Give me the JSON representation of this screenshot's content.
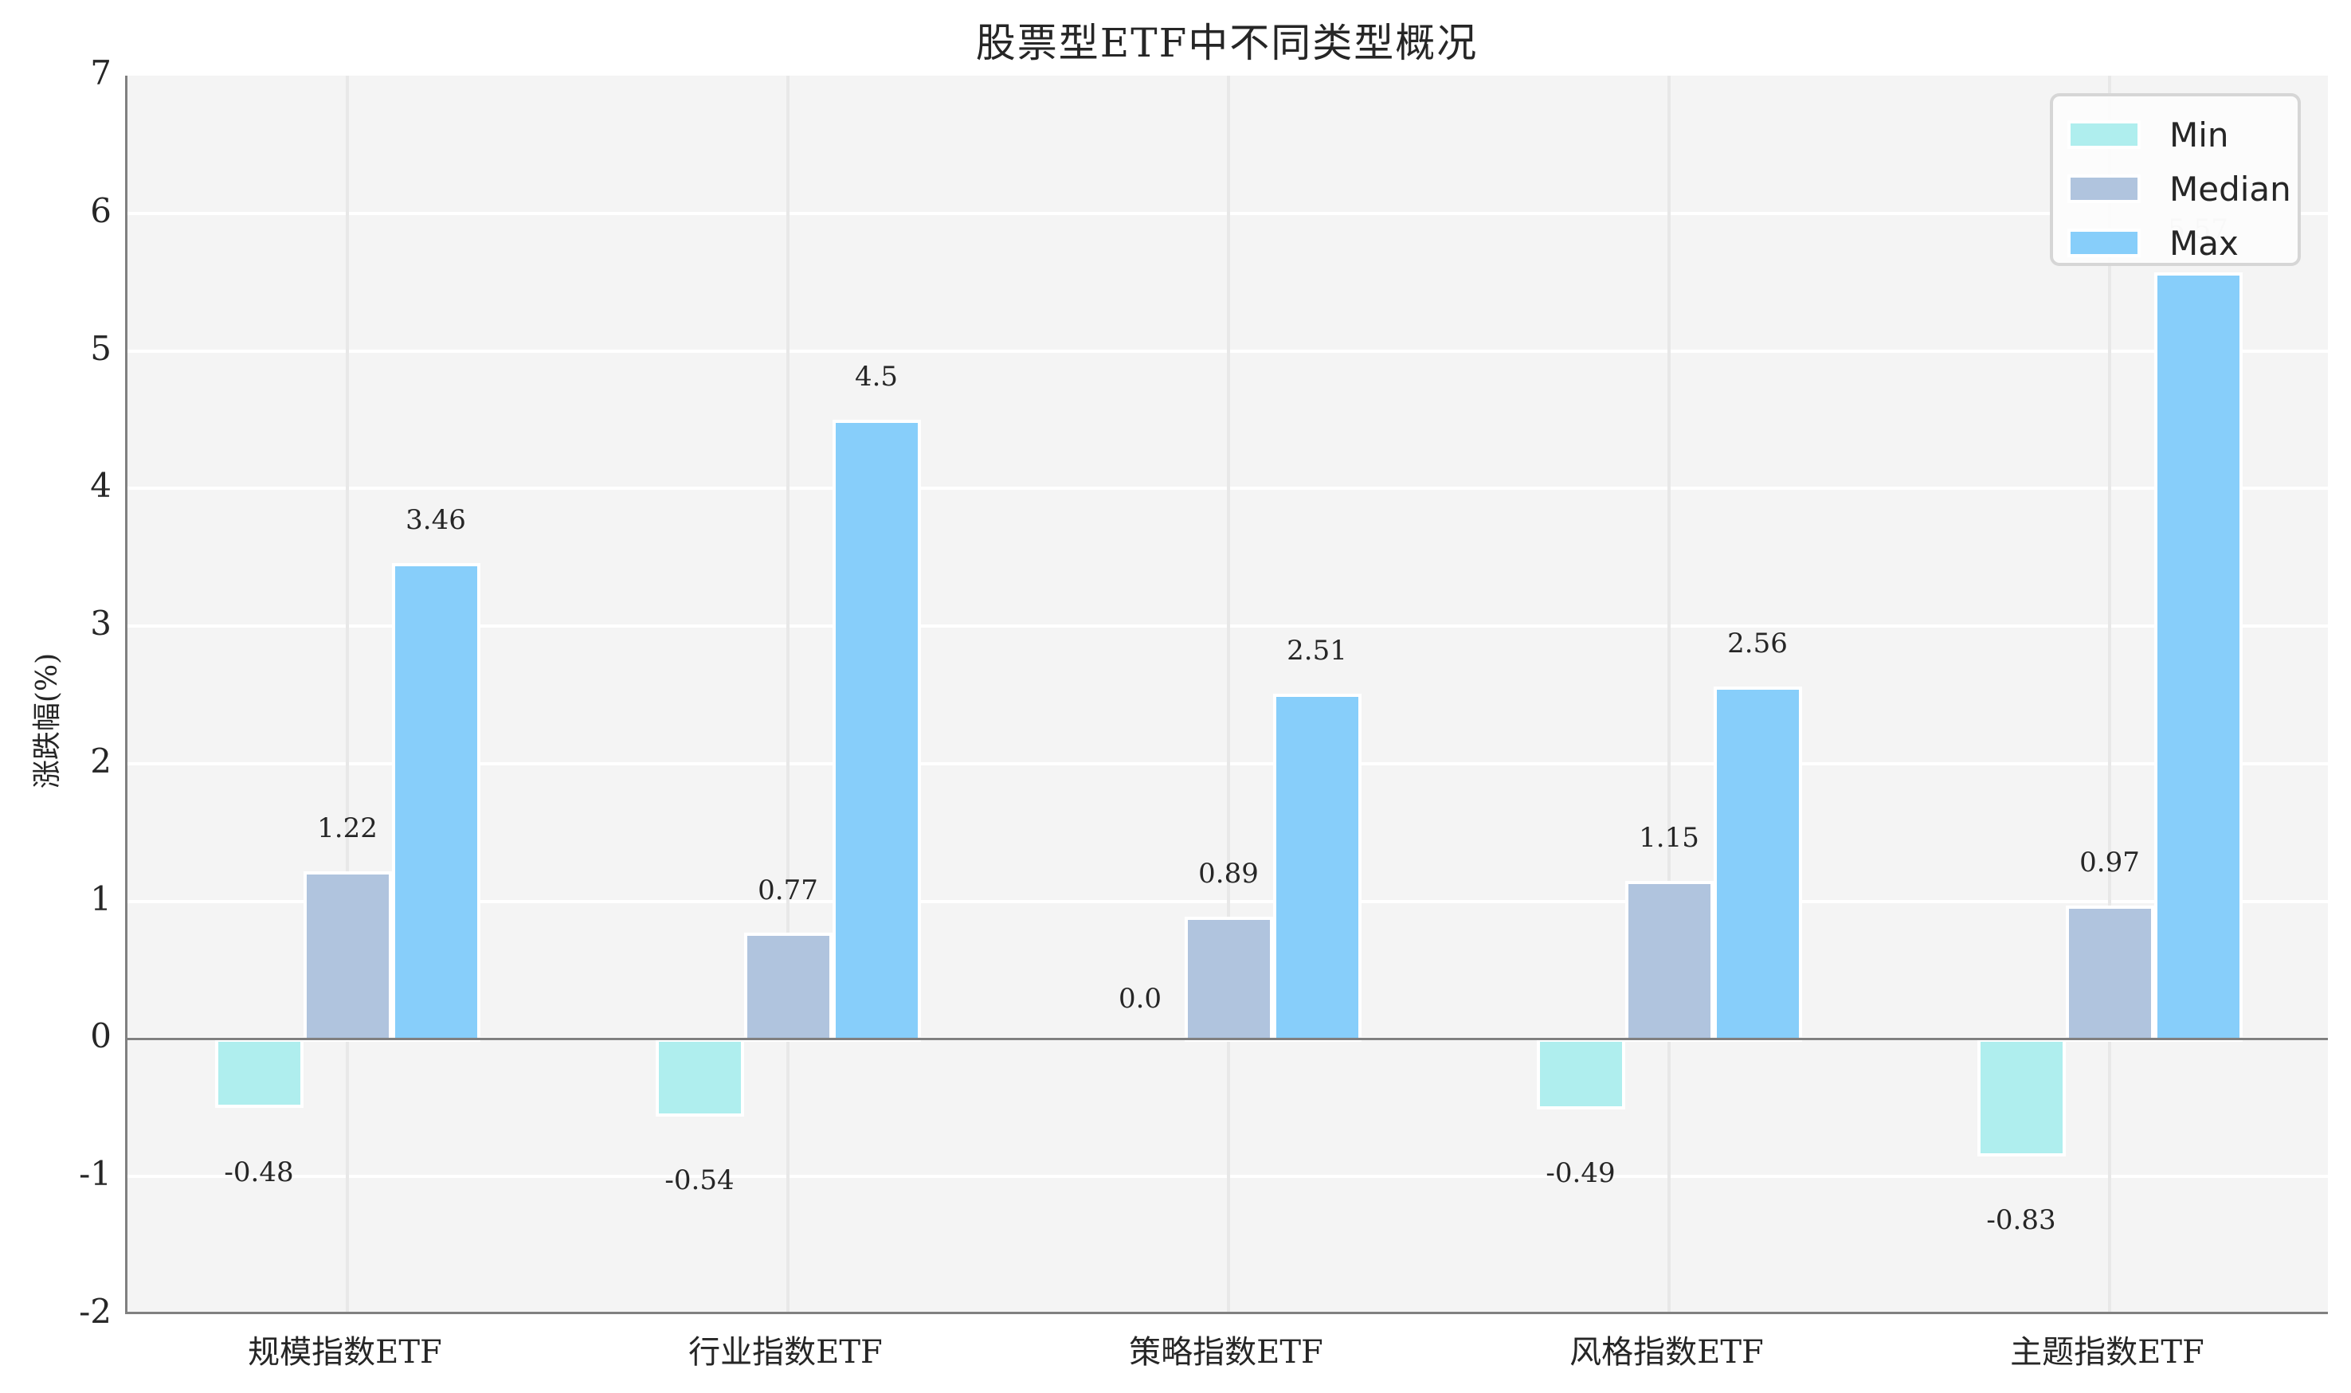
{
  "chart_data": {
    "type": "bar",
    "title": "股票型ETF中不同类型概况",
    "xlabel": "",
    "ylabel": "涨跌幅(%)",
    "ylim": [
      -2,
      7
    ],
    "yticks": [
      "7",
      "6",
      "5",
      "4",
      "3",
      "2",
      "1",
      "0",
      "-1",
      "-2"
    ],
    "categories": [
      "规模指数ETF",
      "行业指数ETF",
      "策略指数ETF",
      "风格指数ETF",
      "主题指数ETF"
    ],
    "series": [
      {
        "name": "Min",
        "color": "#AFEEEE",
        "values": [
          -0.48,
          -0.54,
          0.0,
          -0.49,
          -0.83
        ],
        "labels": [
          "-0.48",
          "-0.54",
          "0.0",
          "-0.49",
          "-0.83"
        ]
      },
      {
        "name": "Median",
        "color": "#B0C4DE",
        "values": [
          1.22,
          0.77,
          0.89,
          1.15,
          0.97
        ],
        "labels": [
          "1.22",
          "0.77",
          "0.89",
          "1.15",
          "0.97"
        ]
      },
      {
        "name": "Max",
        "color": "#87CEFA",
        "values": [
          3.46,
          4.5,
          2.51,
          2.56,
          5.57
        ],
        "labels": [
          "3.46",
          "4.5",
          "2.51",
          "2.56",
          "5.57"
        ]
      }
    ],
    "legend": {
      "position": "upper right",
      "entries": [
        "Min",
        "Median",
        "Max"
      ]
    },
    "grid": true,
    "background": "#F4F4F4"
  }
}
